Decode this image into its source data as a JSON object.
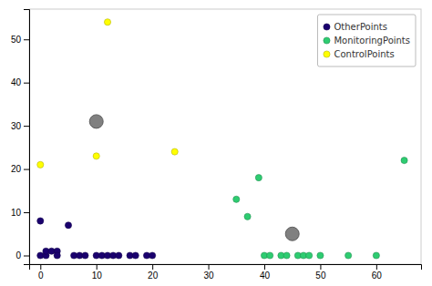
{
  "chart_data": {
    "type": "scatter",
    "series": [
      {
        "name": "OtherPoints",
        "color": "#1a006e",
        "x": [
          0,
          1,
          1,
          2,
          3,
          3,
          0,
          5,
          6,
          7,
          8,
          10,
          11,
          12,
          13,
          14,
          16,
          17,
          19,
          20
        ],
        "values": [
          0,
          0,
          1,
          1,
          1,
          0,
          8,
          7,
          0,
          0,
          0,
          0,
          0,
          0,
          0,
          0,
          0,
          0,
          0,
          0
        ]
      },
      {
        "name": "MonitoringPoints",
        "color": "#2ecc71",
        "x": [
          35,
          37,
          39,
          40,
          41,
          43,
          44,
          46,
          47,
          48,
          50,
          55,
          60,
          65
        ],
        "values": [
          13,
          9,
          18,
          0,
          0,
          0,
          0,
          0,
          0,
          0,
          0,
          0,
          0,
          22
        ]
      },
      {
        "name": "ControlPoints",
        "color": "#ffff00",
        "x": [
          0,
          10,
          12,
          24
        ],
        "values": [
          21,
          23,
          54,
          24
        ]
      },
      {
        "color": "#808080",
        "x": [
          10,
          45
        ],
        "values": [
          31,
          5
        ]
      }
    ],
    "xlim": [
      -2,
      68
    ],
    "ylim": [
      -2,
      57
    ],
    "xticks": [
      0,
      10,
      20,
      30,
      40,
      50,
      60
    ],
    "yticks": [
      0,
      10,
      20,
      30,
      40,
      50
    ],
    "legend": "upper right",
    "grid": false
  }
}
